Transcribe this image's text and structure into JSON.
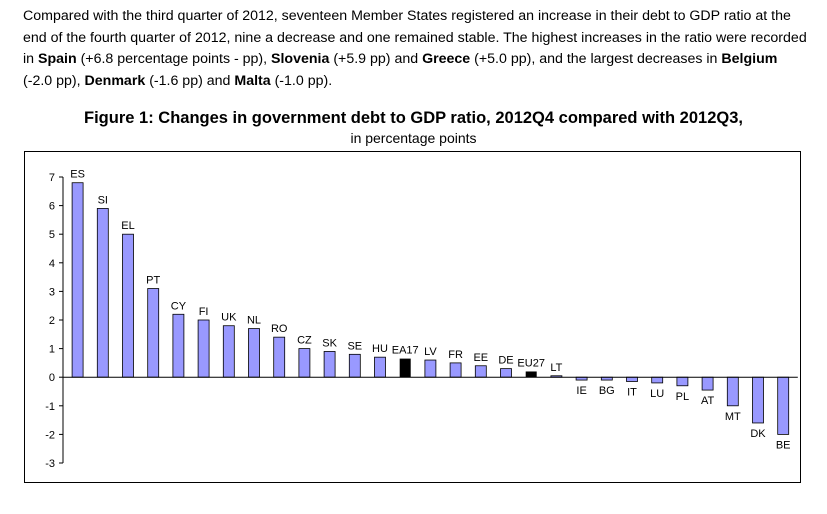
{
  "intro": {
    "t1": "Compared with the third quarter of 2012, seventeen Member States registered an increase in their debt to GDP ratio at the end of the fourth quarter of 2012, nine a decrease and one remained stable. The highest increases in the ratio were recorded in ",
    "b1": "Spain",
    "t2": " (+6.8 percentage points - pp), ",
    "b2": "Slovenia",
    "t3": " (+5.9 pp) and ",
    "b3": "Greece",
    "t4": " (+5.0 pp), and the largest decreases in ",
    "b4": "Belgium",
    "t5": " (-2.0 pp), ",
    "b5": "Denmark",
    "t6": " (-1.6 pp) and ",
    "b6": "Malta",
    "t7": " (-1.0 pp)."
  },
  "colors": {
    "bar": "#9999ff",
    "aggregate_bar": "#000000",
    "axis": "#000000"
  },
  "chart_data": {
    "type": "bar",
    "title": "Figure 1: Changes in government debt to GDP ratio, 2012Q4 compared with 2012Q3,",
    "subtitle": "in percentage points",
    "xlabel": "",
    "ylabel": "",
    "ylim": [
      -3,
      7
    ],
    "yticks": [
      7,
      6,
      5,
      4,
      3,
      2,
      1,
      0,
      -1,
      -2,
      -3
    ],
    "grid": false,
    "legend": "none",
    "categories": [
      "ES",
      "SI",
      "EL",
      "PT",
      "CY",
      "FI",
      "UK",
      "NL",
      "RO",
      "CZ",
      "SK",
      "SE",
      "HU",
      "EA17",
      "LV",
      "FR",
      "EE",
      "DE",
      "EU27",
      "LT",
      "IE",
      "BG",
      "IT",
      "LU",
      "PL",
      "AT",
      "MT",
      "DK",
      "BE"
    ],
    "values": [
      6.8,
      5.9,
      5.0,
      3.1,
      2.2,
      2.0,
      1.8,
      1.7,
      1.4,
      1.0,
      0.9,
      0.8,
      0.7,
      0.65,
      0.6,
      0.5,
      0.4,
      0.3,
      0.2,
      0.05,
      -0.1,
      -0.1,
      -0.15,
      -0.2,
      -0.3,
      -0.45,
      -1.0,
      -1.6,
      -2.0
    ],
    "aggregates": [
      "EA17",
      "EU27"
    ]
  }
}
